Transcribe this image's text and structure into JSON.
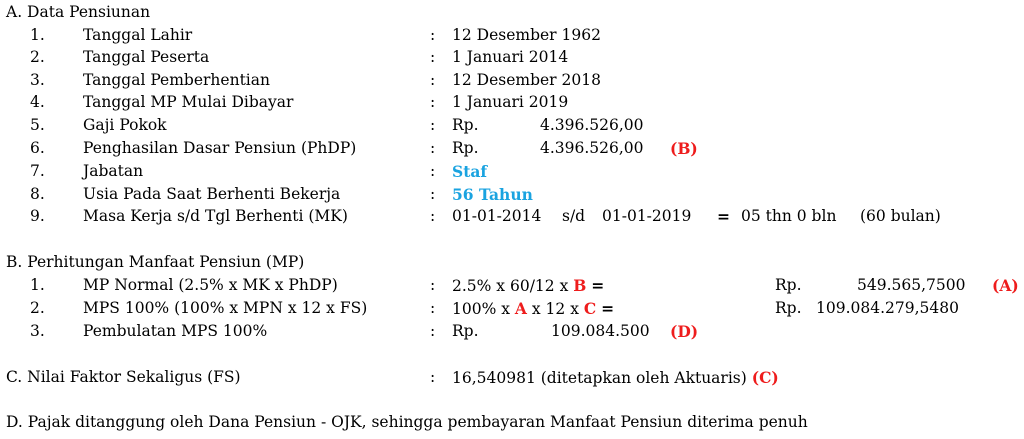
{
  "section_a": {
    "title": "A. Data Pensiunan",
    "items": [
      {
        "num": "1.",
        "label": "Tanggal Lahir",
        "colon": ":",
        "value": "12 Desember 1962"
      },
      {
        "num": "2.",
        "label": "Tanggal Peserta",
        "colon": ":",
        "value": "1 Januari 2014"
      },
      {
        "num": "3.",
        "label": "Tanggal Pemberhentian",
        "colon": ":",
        "value": "12 Desember 2018"
      },
      {
        "num": "4.",
        "label": "Tanggal MP Mulai Dibayar",
        "colon": ":",
        "value": "1 Januari 2019"
      },
      {
        "num": "5.",
        "label": "Gaji Pokok",
        "colon": ":",
        "currency": "Rp.",
        "amount": "4.396.526,00"
      },
      {
        "num": "6.",
        "label": "Penghasilan Dasar Pensiun (PhDP)",
        "colon": ":",
        "currency": "Rp.",
        "amount": "4.396.526,00",
        "tag": "(B)"
      },
      {
        "num": "7.",
        "label": "Jabatan",
        "colon": ":",
        "value": "Staf"
      },
      {
        "num": "8.",
        "label": "Usia Pada Saat Berhenti Bekerja",
        "colon": ":",
        "value": "56 Tahun"
      },
      {
        "num": "9.",
        "label": "Masa Kerja s/d Tgl Berhenti (MK)",
        "colon": ":",
        "from": "01-01-2014",
        "sd": "s/d",
        "to": "01-01-2019",
        "eq": "=",
        "result": "05 thn 0 bln",
        "months": "(60 bulan)"
      }
    ]
  },
  "section_b": {
    "title": "B. Perhitungan Manfaat Pensiun (MP)",
    "items": [
      {
        "num": "1.",
        "label": "MP Normal (2.5% x MK x PhDP)",
        "colon": ":",
        "formula_pre": "2.5% x 60/12 x",
        "var1": "B",
        "eq": "=",
        "currency": "Rp.",
        "amount": "549.565,7500",
        "tag": "(A)"
      },
      {
        "num": "2.",
        "label": "MPS 100%  (100% x MPN x 12 x FS)",
        "colon": ":",
        "formula_pre": "100% x",
        "var1": "A",
        "formula_mid": "x 12 x",
        "var2": "C",
        "eq": "=",
        "currency": "Rp.",
        "amount": "109.084.279,5480"
      },
      {
        "num": "3.",
        "label": "Pembulatan MPS 100%",
        "colon": ":",
        "currency": "Rp.",
        "amount": "109.084.500",
        "tag": "(D)"
      }
    ]
  },
  "section_c": {
    "title": "C. Nilai Faktor Sekaligus (FS)",
    "colon": ":",
    "value": "16,540981 (ditetapkan oleh Aktuaris)",
    "tag": "(C)"
  },
  "section_d": {
    "text": "D. Pajak ditanggung oleh Dana Pensiun - OJK, sehingga pembayaran Manfaat Pensiun diterima penuh"
  }
}
